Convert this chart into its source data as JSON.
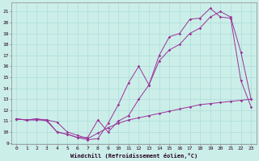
{
  "xlabel": "Windchill (Refroidissement éolien,°C)",
  "background_color": "#cceee8",
  "grid_color": "#aaddda",
  "line_color": "#993399",
  "xlim": [
    -0.5,
    23.5
  ],
  "ylim": [
    8.9,
    21.8
  ],
  "xticks": [
    0,
    1,
    2,
    3,
    4,
    5,
    6,
    7,
    8,
    9,
    10,
    11,
    12,
    13,
    14,
    15,
    16,
    17,
    18,
    19,
    20,
    21,
    22,
    23
  ],
  "yticks": [
    9,
    10,
    11,
    12,
    13,
    14,
    15,
    16,
    17,
    18,
    19,
    20,
    21
  ],
  "line1_x": [
    0,
    1,
    2,
    3,
    4,
    5,
    6,
    7,
    8,
    9,
    10,
    11,
    12,
    13,
    14,
    15,
    16,
    17,
    18,
    19,
    20,
    21,
    22,
    23
  ],
  "line1_y": [
    11.2,
    11.1,
    11.1,
    11.1,
    10.9,
    10.0,
    9.7,
    9.4,
    9.9,
    10.4,
    10.8,
    11.1,
    11.3,
    11.5,
    11.7,
    11.9,
    12.1,
    12.3,
    12.5,
    12.6,
    12.7,
    12.8,
    12.9,
    13.0
  ],
  "line2_x": [
    0,
    1,
    2,
    3,
    4,
    5,
    6,
    7,
    8,
    9,
    10,
    11,
    12,
    13,
    14,
    15,
    16,
    17,
    18,
    19,
    20,
    21,
    22,
    23
  ],
  "line2_y": [
    11.2,
    11.1,
    11.2,
    11.0,
    10.0,
    9.8,
    9.5,
    9.3,
    9.4,
    10.8,
    12.5,
    14.5,
    16.0,
    14.3,
    17.0,
    18.7,
    19.0,
    20.3,
    20.4,
    21.3,
    20.5,
    20.4,
    14.7,
    12.3
  ],
  "line3_x": [
    0,
    1,
    2,
    3,
    4,
    5,
    6,
    7,
    8,
    9,
    10,
    11,
    12,
    13,
    14,
    15,
    16,
    17,
    18,
    19,
    20,
    21,
    22,
    23
  ],
  "line3_y": [
    11.2,
    11.1,
    11.2,
    11.1,
    10.0,
    9.8,
    9.5,
    9.5,
    11.1,
    10.0,
    11.0,
    11.5,
    13.0,
    14.3,
    16.5,
    17.5,
    18.0,
    19.0,
    19.5,
    20.5,
    21.0,
    20.5,
    17.3,
    13.0
  ]
}
